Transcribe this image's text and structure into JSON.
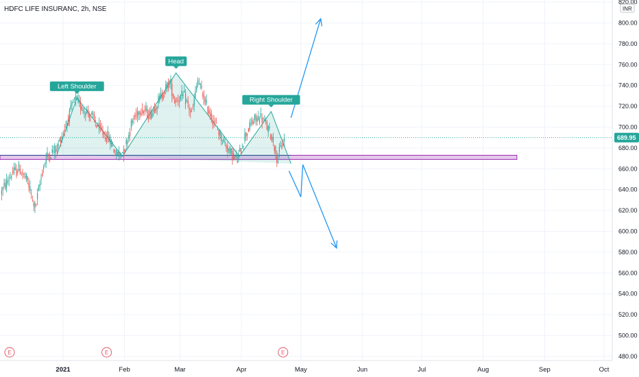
{
  "chart_title": "HDFC LIFE INSURANC, 2h, NSE",
  "currency_label": "INR",
  "colors": {
    "up": "#26a69a",
    "down": "#ef5350",
    "pattern_fill": "#26a69a",
    "zone_fill": "#e1bee7",
    "zone_stroke": "#9c27b0",
    "neckline": "#1e3a8a",
    "projection": "#2196f3",
    "price_tag": "#26a69a",
    "earnings": "#e05a6a"
  },
  "chart_data": {
    "type": "candlestick",
    "symbol": "HDFC LIFE INSURANC",
    "interval": "2h",
    "exchange": "NSE",
    "x_ticks": [
      "2021",
      "Feb",
      "Mar",
      "Apr",
      "May",
      "Jun",
      "Jul",
      "Aug",
      "Sep",
      "Oct"
    ],
    "y_ticks": [
      "820.00",
      "800.00",
      "780.00",
      "760.00",
      "740.00",
      "720.00",
      "700.00",
      "680.00",
      "660.00",
      "640.00",
      "620.00",
      "600.00",
      "580.00",
      "560.00",
      "540.00",
      "520.00",
      "500.00",
      "480.00"
    ],
    "ylim": [
      476,
      822
    ],
    "last_price": "689.95",
    "price_path": [
      {
        "d": "2020-12-01",
        "p": 638
      },
      {
        "d": "2020-12-06",
        "p": 655
      },
      {
        "d": "2020-12-10",
        "p": 660
      },
      {
        "d": "2020-12-14",
        "p": 648
      },
      {
        "d": "2020-12-18",
        "p": 622
      },
      {
        "d": "2020-12-22",
        "p": 662
      },
      {
        "d": "2020-12-24",
        "p": 672
      },
      {
        "d": "2020-12-29",
        "p": 680
      },
      {
        "d": "2021-01-02",
        "p": 700
      },
      {
        "d": "2021-01-07",
        "p": 727
      },
      {
        "d": "2021-01-11",
        "p": 718
      },
      {
        "d": "2021-01-15",
        "p": 712
      },
      {
        "d": "2021-01-20",
        "p": 696
      },
      {
        "d": "2021-01-24",
        "p": 690
      },
      {
        "d": "2021-01-28",
        "p": 673
      },
      {
        "d": "2021-02-01",
        "p": 678
      },
      {
        "d": "2021-02-05",
        "p": 706
      },
      {
        "d": "2021-02-09",
        "p": 718
      },
      {
        "d": "2021-02-14",
        "p": 712
      },
      {
        "d": "2021-02-19",
        "p": 728
      },
      {
        "d": "2021-02-24",
        "p": 744
      },
      {
        "d": "2021-02-26",
        "p": 726
      },
      {
        "d": "2021-03-03",
        "p": 730
      },
      {
        "d": "2021-03-07",
        "p": 712
      },
      {
        "d": "2021-03-10",
        "p": 745
      },
      {
        "d": "2021-03-14",
        "p": 722
      },
      {
        "d": "2021-03-18",
        "p": 706
      },
      {
        "d": "2021-03-22",
        "p": 690
      },
      {
        "d": "2021-03-26",
        "p": 677
      },
      {
        "d": "2021-03-30",
        "p": 668
      },
      {
        "d": "2021-04-03",
        "p": 693
      },
      {
        "d": "2021-04-07",
        "p": 706
      },
      {
        "d": "2021-04-11",
        "p": 710
      },
      {
        "d": "2021-04-14",
        "p": 700
      },
      {
        "d": "2021-04-17",
        "p": 688
      },
      {
        "d": "2021-04-19",
        "p": 670
      },
      {
        "d": "2021-04-21",
        "p": 680
      },
      {
        "d": "2021-04-23",
        "p": 690
      }
    ],
    "annotations": [
      {
        "text": "Left Shoulder",
        "price": 728
      },
      {
        "text": "Head",
        "price": 752
      },
      {
        "text": "Right Shoulder",
        "price": 715
      }
    ],
    "pattern_points": [
      {
        "d": "2020-12-29",
        "p": 674
      },
      {
        "d": "2021-01-08",
        "p": 728
      },
      {
        "d": "2021-01-31",
        "p": 672
      },
      {
        "d": "2021-02-27",
        "p": 752
      },
      {
        "d": "2021-03-31",
        "p": 672
      },
      {
        "d": "2021-04-16",
        "p": 715
      },
      {
        "d": "2021-04-26",
        "p": 665
      }
    ],
    "support_zone": {
      "low": 669,
      "high": 673
    },
    "projection_up": [
      {
        "d": "2021-04-26",
        "p": 709
      },
      {
        "d": "2021-05-11",
        "p": 804
      }
    ],
    "projection_down": [
      {
        "d": "2021-04-25",
        "p": 658
      },
      {
        "d": "2021-05-01",
        "p": 633
      },
      {
        "d": "2021-05-02",
        "p": 664
      },
      {
        "d": "2021-05-19",
        "p": 584
      }
    ],
    "earnings_markers": [
      "E",
      "E",
      "E"
    ]
  }
}
